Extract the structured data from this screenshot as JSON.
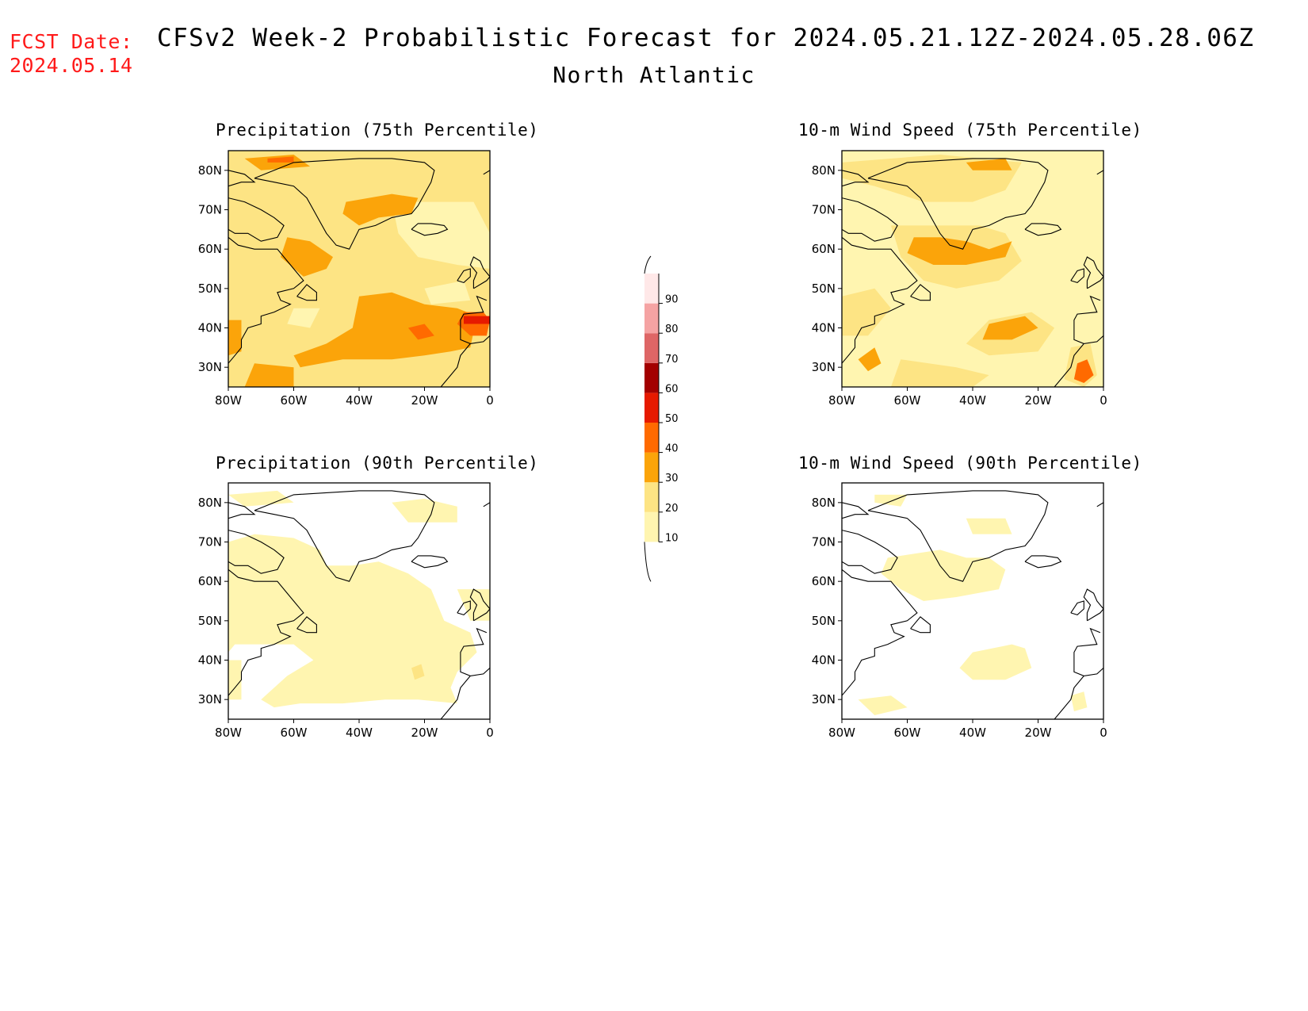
{
  "header": {
    "fcst_label": "FCST Date:",
    "fcst_date": "2024.05.14",
    "title": "CFSv2 Week-2 Probabilistic Forecast for 2024.05.21.12Z-2024.05.28.06Z",
    "subtitle": "North Atlantic"
  },
  "panels": {
    "precip75": {
      "title": "Precipitation (75th Percentile)"
    },
    "wind75": {
      "title": "10-m Wind Speed (75th Percentile)"
    },
    "precip90": {
      "title": "Precipitation (90th Percentile)"
    },
    "wind90": {
      "title": "10-m Wind Speed (90th Percentile)"
    }
  },
  "axes": {
    "lat_labels": [
      "80N",
      "70N",
      "60N",
      "50N",
      "40N",
      "30N"
    ],
    "lon_labels": [
      "80W",
      "60W",
      "40W",
      "20W",
      "0"
    ]
  },
  "colorbar": {
    "levels": [
      "10",
      "20",
      "30",
      "40",
      "50",
      "60",
      "70",
      "80",
      "90"
    ],
    "colors": [
      "#fff5b0",
      "#fde484",
      "#fba40a",
      "#ff6a00",
      "#e61a00",
      "#a30000",
      "#de6666",
      "#f5a3a3",
      "#ffe8e8"
    ]
  }
}
